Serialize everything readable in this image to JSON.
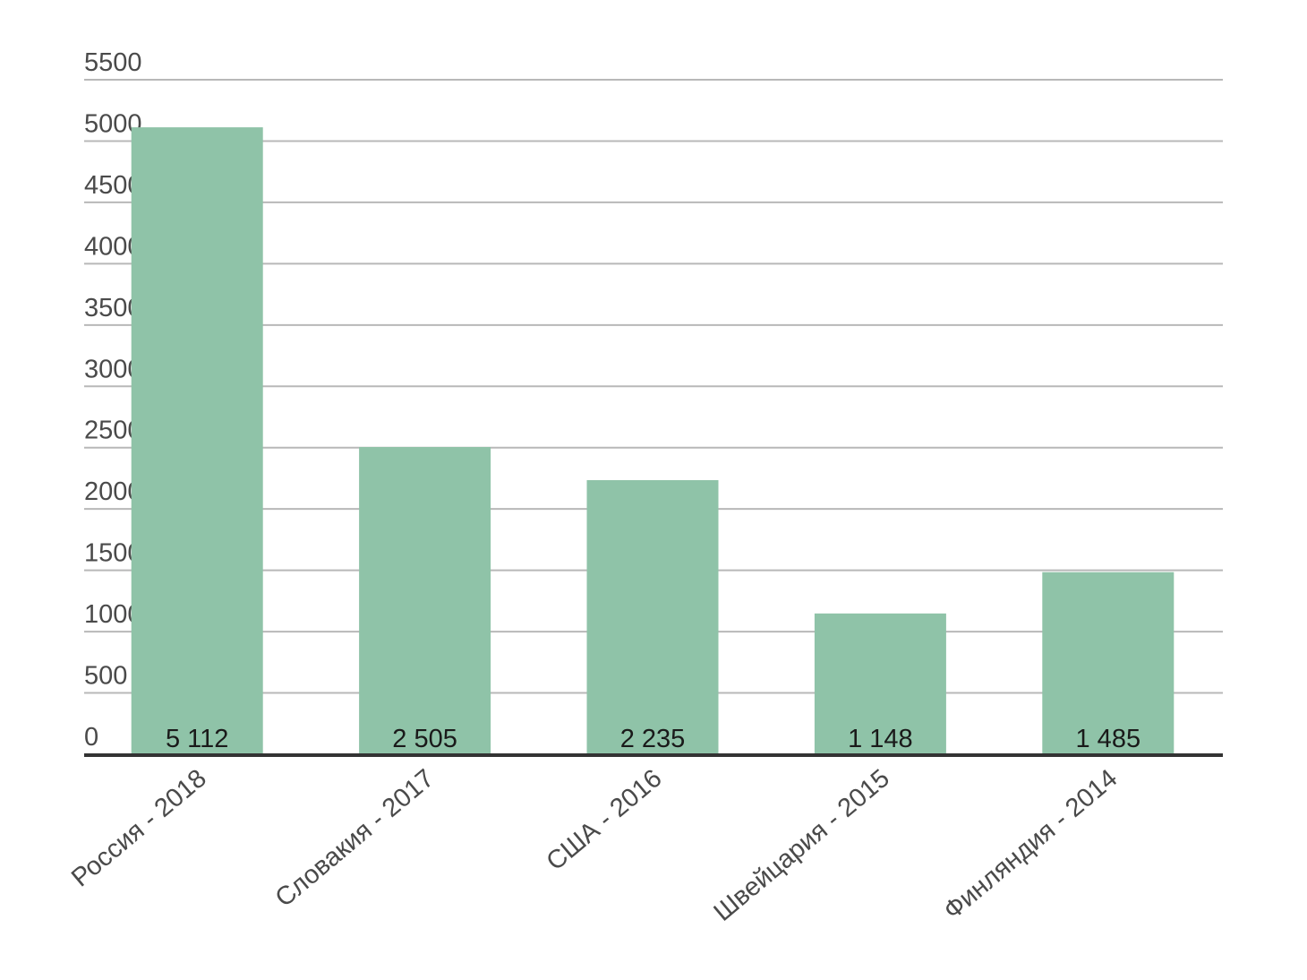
{
  "chart_data": {
    "type": "bar",
    "categories": [
      "Россия - 2018",
      "Словакия - 2017",
      "США - 2016",
      "Швейцария - 2015",
      "Финляндия - 2014"
    ],
    "values": [
      5112,
      2505,
      2235,
      1148,
      1485
    ],
    "data_labels": [
      "5 112",
      "2 505",
      "2 235",
      "1 148",
      "1 485"
    ],
    "yticks": [
      "0",
      "500",
      "1000",
      "1500",
      "2000",
      "2500",
      "3000",
      "3500",
      "4000",
      "4500",
      "5000",
      "5500"
    ],
    "ylim": [
      0,
      5500
    ],
    "grid": true,
    "legend": "none",
    "bar_color": "#8fc3a8",
    "grid_color": "#b8b8b8",
    "baseline_color": "#333333"
  }
}
